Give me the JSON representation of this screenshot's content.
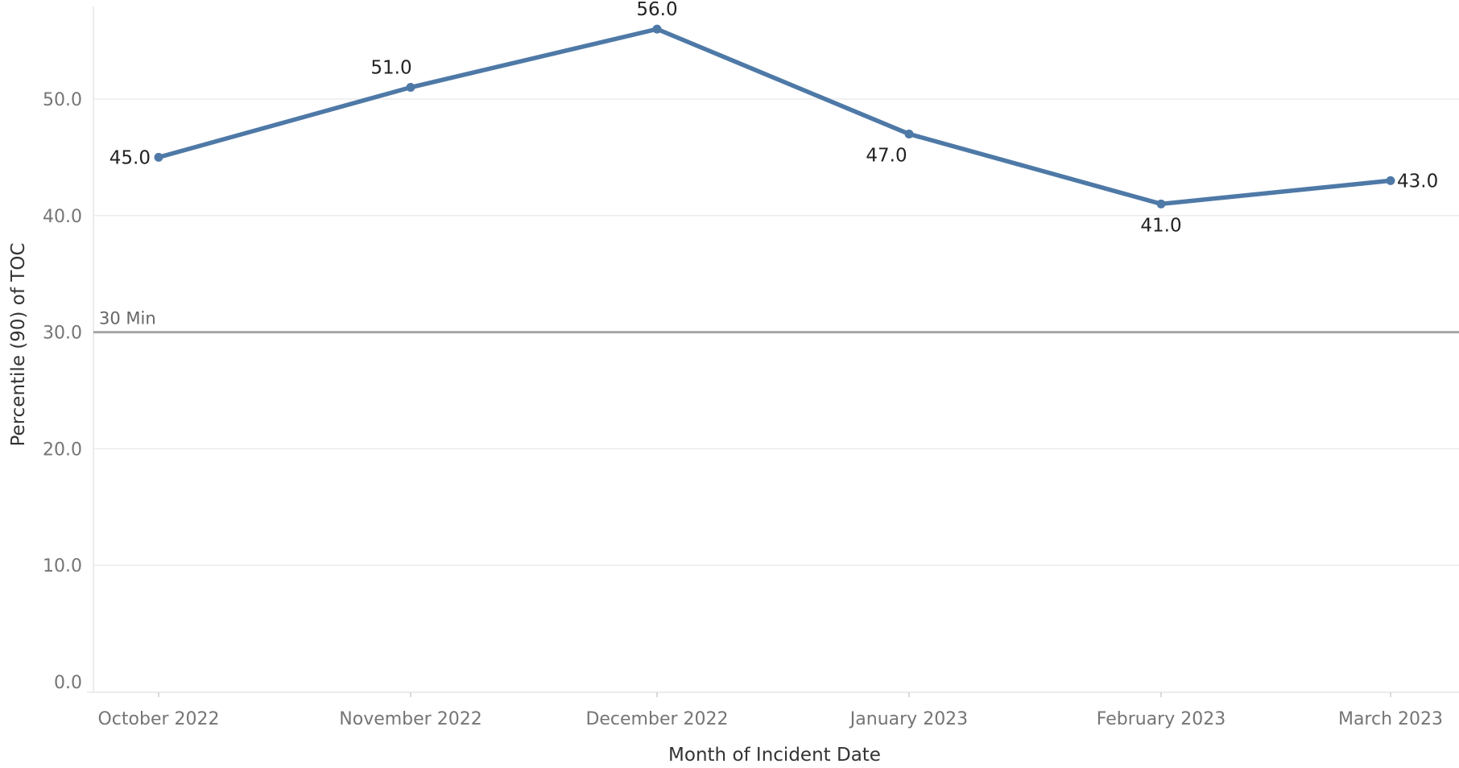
{
  "chart_data": {
    "type": "line",
    "categories": [
      "October 2022",
      "November 2022",
      "December 2022",
      "January 2023",
      "February 2023",
      "March 2023"
    ],
    "series": [
      {
        "values": [
          45.0,
          51.0,
          56.0,
          47.0,
          41.0,
          43.0
        ]
      }
    ],
    "data_labels": [
      "45.0",
      "51.0",
      "56.0",
      "47.0",
      "41.0",
      "43.0"
    ],
    "xlabel": "Month of Incident Date",
    "ylabel": "Percentile (90) of TOC",
    "ylim": [
      0,
      57
    ],
    "yticks": [
      0,
      10,
      20,
      30,
      40,
      50
    ],
    "ytick_labels": [
      "0.0",
      "10.0",
      "20.0",
      "30.0",
      "40.0",
      "50.0"
    ],
    "reference_line": {
      "value": 30,
      "label": "30 Min"
    },
    "grid": true,
    "colors": {
      "series": "#4e79a7",
      "reference": "#a6a6a6",
      "grid": "#ececec"
    }
  }
}
